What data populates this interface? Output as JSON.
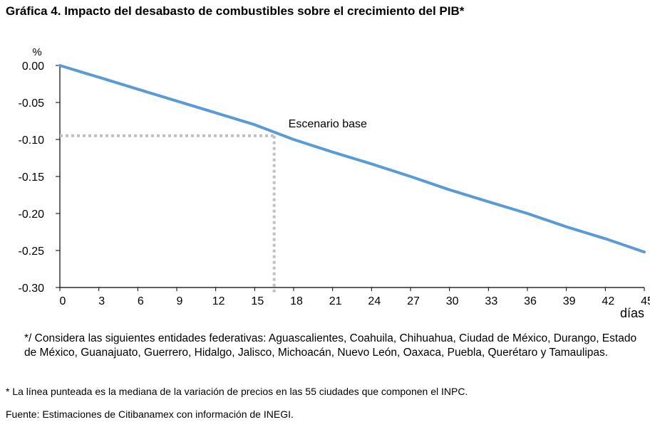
{
  "title": "Gráfica 4. Impacto del desabasto de combustibles sobre el crecimiento del PIB*",
  "chart_data": {
    "type": "line",
    "ylabel": "%",
    "xlabel": "días",
    "x": [
      0,
      3,
      6,
      9,
      12,
      15,
      18,
      21,
      24,
      27,
      30,
      33,
      36,
      39,
      42,
      45
    ],
    "series": [
      {
        "values": [
          0.0,
          -0.016,
          -0.032,
          -0.048,
          -0.064,
          -0.08,
          -0.1,
          -0.117,
          -0.133,
          -0.15,
          -0.168,
          -0.184,
          -0.2,
          -0.218,
          -0.234,
          -0.252
        ]
      }
    ],
    "xlim": [
      0,
      45
    ],
    "ylim": [
      -0.3,
      0.0
    ],
    "xticks": [
      "0",
      "3",
      "6",
      "9",
      "12",
      "15",
      "18",
      "21",
      "24",
      "27",
      "30",
      "33",
      "36",
      "39",
      "42",
      "45"
    ],
    "yticks": [
      "0.00",
      "-0.05",
      "-0.10",
      "-0.15",
      "-0.20",
      "-0.25",
      "-0.30"
    ],
    "annotation": {
      "text": "Escenario base",
      "x": 16.5,
      "y": -0.095
    },
    "line_color": "#5b9bd5",
    "guide_color": "#c0c0c0",
    "grid": false
  },
  "notes": {
    "states": "*/ Considera las siguientes entidades federativas: Aguascalientes, Coahuila, Chihuahua, Ciudad de México, Durango, Estado de México, Guanajuato, Guerrero, Hidalgo, Jalisco, Michoacán, Nuevo León, Oaxaca, Puebla, Querétaro y Tamaulipas.",
    "dotted_line": "* La línea punteada es la mediana de la variación de precios en las 55 ciudades que componen el INPC.",
    "source": "Fuente: Estimaciones de Citibanamex con información de INEGI."
  }
}
